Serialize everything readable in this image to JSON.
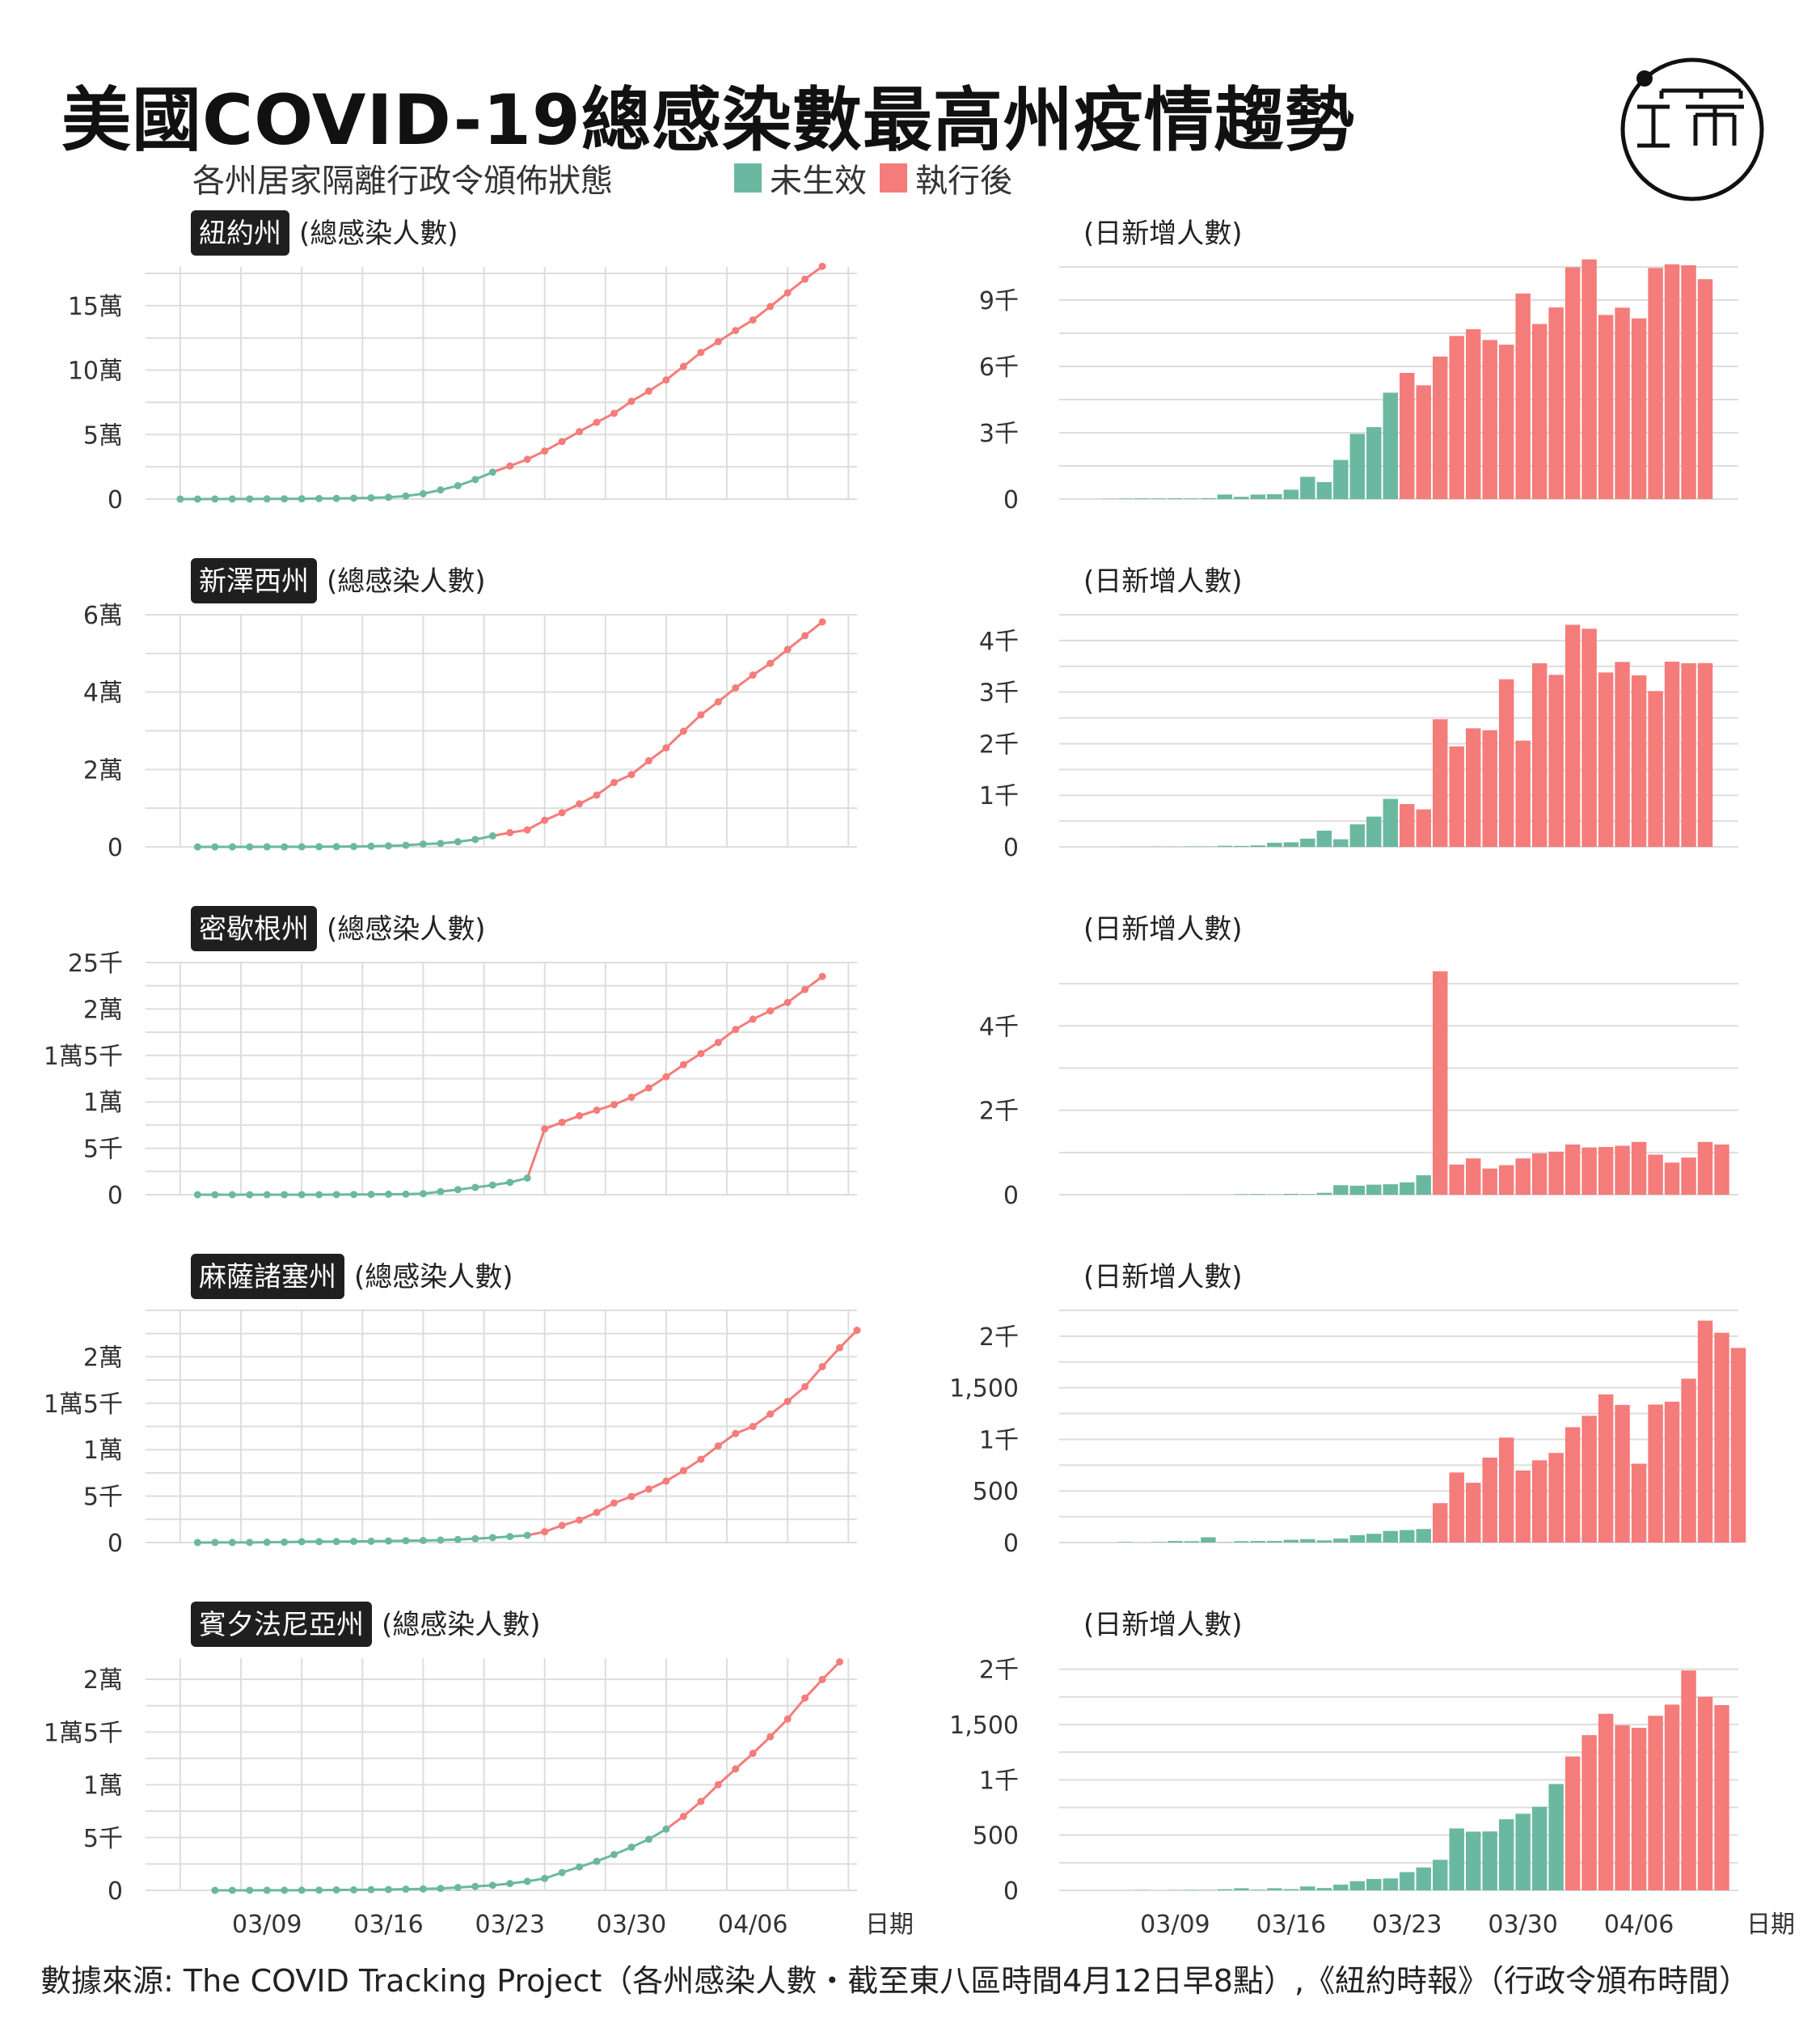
{
  "title": "美國COVID-19總感染數最高州疫情趨勢",
  "legend": {
    "title": "各州居家隔離行政令頒佈狀態",
    "items": [
      {
        "label": "未生效",
        "color": "#6bb8a0"
      },
      {
        "label": "執行後",
        "color": "#f47c7a"
      }
    ]
  },
  "footer": "數據來源: The COVID Tracking Project（各州感染人數・截至東八區時間4月12日早8點）,《紐約時報》（行政令頒布時間）",
  "axis": {
    "date_ticks": [
      "03/09",
      "03/16",
      "03/23",
      "03/30",
      "04/06"
    ],
    "date_label": "日期",
    "cumulative_label": "(總感染人數)",
    "daily_label": "(日新增人數)"
  },
  "colors": {
    "before": "#6bb8a0",
    "after": "#f47c7a",
    "grid": "#dddddd",
    "badge": "#1f1f1f"
  },
  "chart_data": [
    {
      "type": "line+bar",
      "state": "紐約州",
      "start_date": "03/04",
      "order_index": 18,
      "cumulative": {
        "ylim": [
          0,
          180000
        ],
        "yticks": [
          {
            "v": 0,
            "label": "0"
          },
          {
            "v": 50000,
            "label": "5萬"
          },
          {
            "v": 100000,
            "label": "10萬"
          },
          {
            "v": 150000,
            "label": "15萬"
          }
        ],
        "values": [
          11,
          22,
          44,
          76,
          105,
          142,
          173,
          216,
          421,
          524,
          729,
          950,
          1374,
          2382,
          4152,
          7102,
          10356,
          15168,
          20875,
          25665,
          30811,
          37258,
          44635,
          52318,
          59513,
          66497,
          75795,
          83712,
          92381,
          102863,
          113704,
          122031,
          130689,
          138863,
          149316,
          159937,
          170512,
          180458
        ]
      },
      "daily": {
        "ylim": [
          0,
          10500
        ],
        "yticks": [
          {
            "v": 0,
            "label": "0"
          },
          {
            "v": 3000,
            "label": "3千"
          },
          {
            "v": 6000,
            "label": "6千"
          },
          {
            "v": 9000,
            "label": "9千"
          }
        ],
        "values": [
          0,
          11,
          22,
          32,
          29,
          37,
          31,
          43,
          205,
          103,
          205,
          221,
          424,
          1008,
          770,
          1770,
          2950,
          3254,
          4812,
          5707,
          5146,
          6447,
          7377,
          7683,
          7195,
          6984,
          9298,
          7917,
          8669,
          10482,
          10841,
          8327,
          8658,
          8174,
          10453,
          10621,
          10575,
          9946
        ]
      }
    },
    {
      "type": "line+bar",
      "state": "新澤西州",
      "start_date": "03/05",
      "order_index": 17,
      "cumulative": {
        "ylim": [
          0,
          60000
        ],
        "yticks": [
          {
            "v": 0,
            "label": "0"
          },
          {
            "v": 20000,
            "label": "2萬"
          },
          {
            "v": 40000,
            "label": "4萬"
          },
          {
            "v": 60000,
            "label": "6萬"
          }
        ],
        "values": [
          2,
          4,
          6,
          11,
          15,
          23,
          29,
          50,
          69,
          98,
          178,
          267,
          427,
          742,
          890,
          1327,
          1914,
          2844,
          3675,
          4402,
          6876,
          8825,
          11124,
          13386,
          16636,
          18696,
          22255,
          25590,
          29895,
          34124,
          37505,
          41090,
          44416,
          47437,
          51027,
          54588,
          58151
        ]
      },
      "daily": {
        "ylim": [
          0,
          4500
        ],
        "yticks": [
          {
            "v": 0,
            "label": "0"
          },
          {
            "v": 1000,
            "label": "1千"
          },
          {
            "v": 2000,
            "label": "2千"
          },
          {
            "v": 3000,
            "label": "3千"
          },
          {
            "v": 4000,
            "label": "4千"
          }
        ],
        "values": [
          0,
          2,
          2,
          5,
          4,
          8,
          6,
          21,
          19,
          29,
          80,
          89,
          160,
          315,
          148,
          437,
          587,
          930,
          831,
          727,
          2474,
          1949,
          2299,
          2262,
          3250,
          2060,
          3559,
          3335,
          4305,
          4229,
          3381,
          3585,
          3326,
          3021,
          3590,
          3561,
          3563
        ]
      }
    },
    {
      "type": "line+bar",
      "state": "密歇根州",
      "start_date": "03/05",
      "order_index": 19,
      "cumulative": {
        "ylim": [
          0,
          25000
        ],
        "yticks": [
          {
            "v": 0,
            "label": "0"
          },
          {
            "v": 5000,
            "label": "5千"
          },
          {
            "v": 10000,
            "label": "1萬"
          },
          {
            "v": 15000,
            "label": "1萬5千"
          },
          {
            "v": 20000,
            "label": "2萬"
          },
          {
            "v": 25000,
            "label": "25千"
          }
        ],
        "values": [
          0,
          0,
          0,
          0,
          0,
          2,
          2,
          2,
          12,
          25,
          33,
          53,
          65,
          110,
          336,
          549,
          787,
          1035,
          1328,
          1791,
          7085,
          7800,
          8500,
          9100,
          9700,
          10500,
          11500,
          12700,
          14000,
          15200,
          16400,
          17800,
          18900,
          19800,
          20700,
          22100,
          23500
        ]
      },
      "daily": {
        "ylim": [
          0,
          5500
        ],
        "yticks": [
          {
            "v": 0,
            "label": "0"
          },
          {
            "v": 2000,
            "label": "2千"
          },
          {
            "v": 4000,
            "label": "4千"
          }
        ],
        "values": [
          0,
          0,
          0,
          0,
          0,
          2,
          0,
          0,
          10,
          13,
          8,
          20,
          12,
          45,
          226,
          213,
          238,
          248,
          293,
          463,
          5294,
          715,
          860,
          620,
          700,
          860,
          980,
          1020,
          1190,
          1120,
          1130,
          1160,
          1250,
          950,
          760,
          880,
          1250,
          1190
        ]
      }
    },
    {
      "type": "line+bar",
      "state": "麻薩諸塞州",
      "start_date": "03/05",
      "order_index": 19,
      "cumulative": {
        "ylim": [
          0,
          25000
        ],
        "yticks": [
          {
            "v": 0,
            "label": "0"
          },
          {
            "v": 5000,
            "label": "5千"
          },
          {
            "v": 10000,
            "label": "1萬"
          },
          {
            "v": 15000,
            "label": "1萬5千"
          },
          {
            "v": 20000,
            "label": "2萬"
          }
        ],
        "values": [
          2,
          7,
          8,
          13,
          28,
          41,
          92,
          95,
          108,
          123,
          138,
          164,
          197,
          218,
          256,
          328,
          413,
          525,
          646,
          777,
          1159,
          1838,
          2417,
          3240,
          4257,
          4955,
          5752,
          6620,
          7738,
          8966,
          10402,
          11736,
          12500,
          13837,
          15202,
          16790,
          18941,
          20974,
          22860
        ]
      },
      "daily": {
        "ylim": [
          0,
          2250
        ],
        "yticks": [
          {
            "v": 0,
            "label": "0"
          },
          {
            "v": 500,
            "label": "500"
          },
          {
            "v": 1000,
            "label": "1千"
          },
          {
            "v": 1500,
            "label": "1,500"
          },
          {
            "v": 2000,
            "label": "2千"
          }
        ],
        "values": [
          0,
          5,
          1,
          5,
          15,
          13,
          51,
          3,
          13,
          15,
          15,
          26,
          33,
          21,
          38,
          72,
          85,
          112,
          121,
          131,
          382,
          679,
          579,
          823,
          1017,
          698,
          797,
          868,
          1118,
          1228,
          1436,
          1334,
          764,
          1337,
          1365,
          1588,
          2151,
          2033,
          1886
        ]
      }
    },
    {
      "type": "line+bar",
      "state": "賓夕法尼亞州",
      "start_date": "03/06",
      "order_index": 26,
      "cumulative": {
        "ylim": [
          0,
          22000
        ],
        "yticks": [
          {
            "v": 0,
            "label": "0"
          },
          {
            "v": 5000,
            "label": "5千"
          },
          {
            "v": 10000,
            "label": "1萬"
          },
          {
            "v": 15000,
            "label": "1萬5千"
          },
          {
            "v": 20000,
            "label": "2萬"
          }
        ],
        "values": [
          2,
          4,
          4,
          6,
          10,
          12,
          22,
          41,
          47,
          66,
          77,
          112,
          133,
          185,
          268,
          371,
          479,
          644,
          851,
          1127,
          1687,
          2218,
          2751,
          3394,
          4087,
          4843,
          5805,
          7016,
          8420,
          10017,
          11510,
          12980,
          14559,
          16239,
          18228,
          19979,
          21655
        ]
      },
      "daily": {
        "ylim": [
          0,
          2100
        ],
        "yticks": [
          {
            "v": 0,
            "label": "0"
          },
          {
            "v": 500,
            "label": "500"
          },
          {
            "v": 1000,
            "label": "1千"
          },
          {
            "v": 1500,
            "label": "1,500"
          },
          {
            "v": 2000,
            "label": "2千"
          }
        ],
        "values": [
          0,
          2,
          0,
          2,
          4,
          2,
          10,
          19,
          6,
          19,
          11,
          35,
          21,
          52,
          83,
          103,
          108,
          165,
          207,
          276,
          560,
          531,
          533,
          643,
          693,
          756,
          962,
          1211,
          1404,
          1597,
          1493,
          1470,
          1579,
          1680,
          1989,
          1751,
          1676
        ]
      }
    }
  ]
}
